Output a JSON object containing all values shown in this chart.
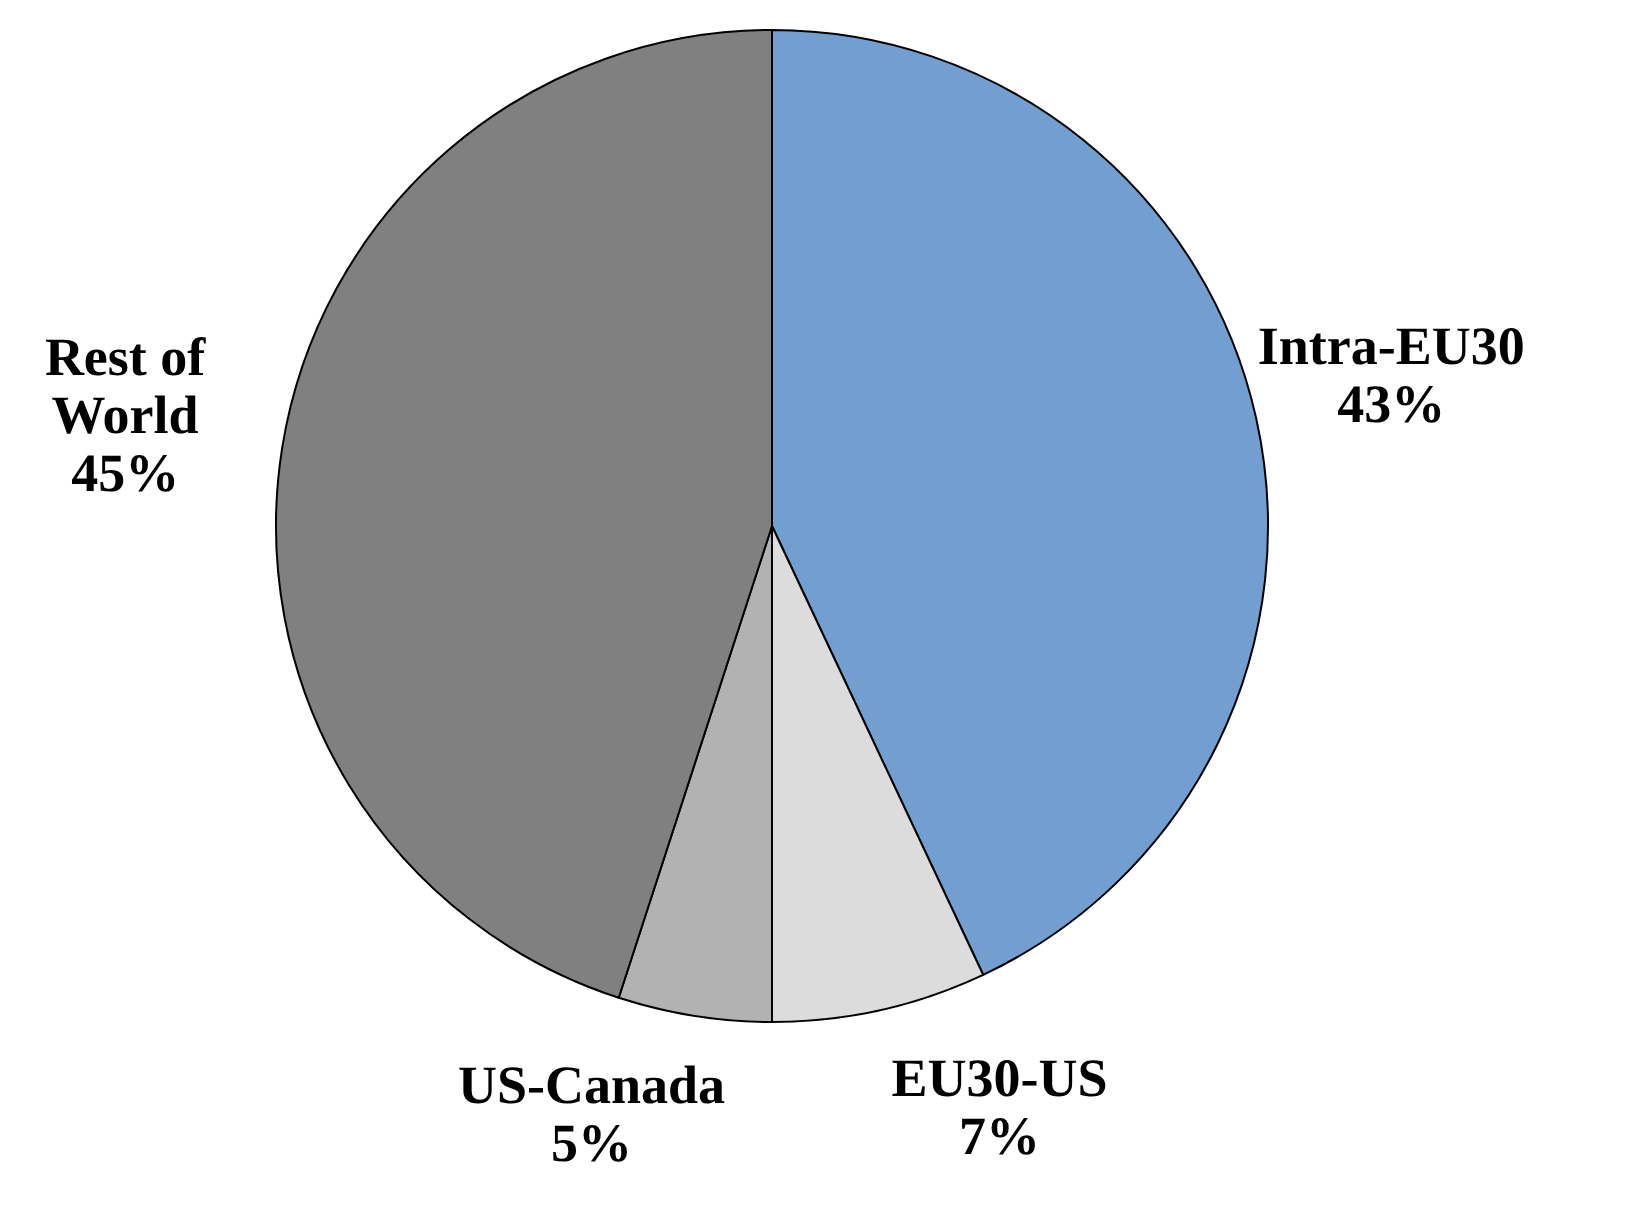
{
  "chart_data": {
    "type": "pie",
    "categories": [
      "Intra-EU30",
      "EU30-US",
      "US-Canada",
      "Rest of World"
    ],
    "values": [
      43,
      7,
      5,
      45
    ],
    "value_labels": [
      "43%",
      "7%",
      "5%",
      "45%"
    ],
    "colors": [
      "#739fd0",
      "#dcdcdc",
      "#b2b2b2",
      "#808080"
    ]
  }
}
